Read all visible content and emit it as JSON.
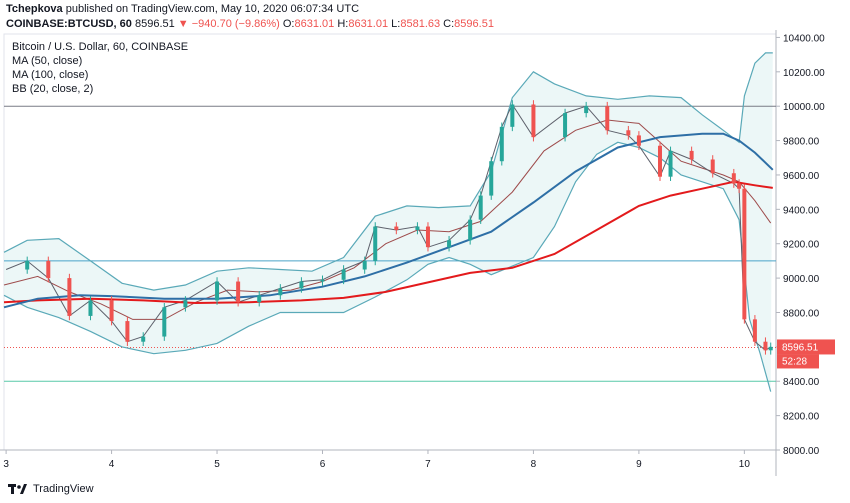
{
  "header": {
    "publisher": "Tchepkova",
    "published_text": "published on TradingView.com, May 10, 2020 06:07:34 UTC",
    "symbol": "COINBASE:BTCUSD, 60",
    "last": "8596.51",
    "change": "▼ −940.70 (−9.86%)",
    "o_label": "O:",
    "o": "8631.01",
    "h_label": "H:",
    "h": "8631.01",
    "l_label": "L:",
    "l": "8581.63",
    "c_label": "C:",
    "c": "8596.51"
  },
  "overlay": {
    "title": "Bitcoin / U.S. Dollar, 60, COINBASE",
    "ind1": "MA (50, close)",
    "ind2": "MA (100, close)",
    "ind3": "BB (20, close, 2)"
  },
  "footer": {
    "brand": "TradingView"
  },
  "chart_data": {
    "type": "line",
    "title": "Bitcoin / U.S. Dollar, 60, COINBASE",
    "ylim": [
      8000,
      10420
    ],
    "y_ticks": [
      "10400.00",
      "10200.00",
      "10000.00",
      "9800.00",
      "9600.00",
      "9400.00",
      "9200.00",
      "9000.00",
      "8800.00",
      "8600.00",
      "8400.00",
      "8200.00",
      "8000.00"
    ],
    "x_ticks": [
      {
        "label": "3",
        "x": 3
      },
      {
        "label": "4",
        "x": 4
      },
      {
        "label": "5",
        "x": 5
      },
      {
        "label": "6",
        "x": 6
      },
      {
        "label": "7",
        "x": 7
      },
      {
        "label": "8",
        "x": 8
      },
      {
        "label": "9",
        "x": 9
      },
      {
        "label": "10",
        "x": 10
      }
    ],
    "xlim": [
      2.98,
      10.3
    ],
    "last_price": 8596.51,
    "countdown": "52:28",
    "colors": {
      "up": "#26a69a",
      "down": "#ef5350",
      "ma50": "#2e6fa6",
      "ma100": "#e31a1c",
      "bb_mid": "#9e4b4b",
      "bb_band": "#5aa9b8",
      "bb_fill": "#e6f4f4",
      "hline_top": "#787b86",
      "hline_mid": "#4aa3c8",
      "hline_low": "#58c9a8",
      "price_line": "#ef5350"
    },
    "hlines": [
      {
        "name": "hline-10000",
        "y": 10000,
        "color": "#787b86"
      },
      {
        "name": "hline-9100",
        "y": 9100,
        "color": "#4aa3c8"
      },
      {
        "name": "hline-8400",
        "y": 8400,
        "color": "#58c9a8"
      }
    ],
    "series": [
      {
        "name": "Price (approx.)",
        "x": [
          3.0,
          3.2,
          3.4,
          3.6,
          3.8,
          4.0,
          4.15,
          4.3,
          4.5,
          4.7,
          5.0,
          5.2,
          5.4,
          5.6,
          5.8,
          6.0,
          6.2,
          6.4,
          6.5,
          6.7,
          6.9,
          7.0,
          7.2,
          7.4,
          7.5,
          7.6,
          7.7,
          7.8,
          8.0,
          8.3,
          8.5,
          8.7,
          8.9,
          9.0,
          9.2,
          9.3,
          9.5,
          9.7,
          9.9,
          9.95,
          10.0,
          10.1,
          10.2,
          10.25
        ],
        "values": [
          9050,
          9100,
          9000,
          8780,
          8870,
          8750,
          8630,
          8660,
          8830,
          8870,
          8980,
          8860,
          8900,
          8940,
          8980,
          8990,
          9050,
          9100,
          9300,
          9280,
          9300,
          9180,
          9220,
          9340,
          9480,
          9680,
          9880,
          10010,
          9820,
          9960,
          10000,
          9860,
          9830,
          9770,
          9590,
          9740,
          9690,
          9610,
          9550,
          9520,
          8760,
          8630,
          8580,
          8600
        ]
      },
      {
        "name": "MA (50, close)",
        "x": [
          2.98,
          3.3,
          3.7,
          4.0,
          4.5,
          5.0,
          5.5,
          6.0,
          6.4,
          6.8,
          7.2,
          7.6,
          8.0,
          8.4,
          8.8,
          9.2,
          9.6,
          9.8,
          9.95,
          10.1,
          10.27
        ],
        "values": [
          8830,
          8880,
          8900,
          8895,
          8880,
          8880,
          8900,
          8950,
          9010,
          9090,
          9180,
          9270,
          9440,
          9620,
          9760,
          9820,
          9840,
          9840,
          9800,
          9730,
          9630
        ]
      },
      {
        "name": "MA (100, close)",
        "x": [
          2.98,
          3.3,
          3.8,
          4.3,
          4.8,
          5.3,
          5.8,
          6.2,
          6.6,
          7.0,
          7.4,
          7.8,
          8.2,
          8.6,
          9.0,
          9.3,
          9.6,
          9.9,
          10.1,
          10.27
        ],
        "values": [
          8860,
          8870,
          8880,
          8870,
          8855,
          8860,
          8870,
          8885,
          8920,
          8975,
          9030,
          9060,
          9140,
          9280,
          9420,
          9480,
          9520,
          9560,
          9540,
          9525
        ]
      },
      {
        "name": "BB basis",
        "x": [
          2.98,
          3.3,
          3.6,
          3.9,
          4.2,
          4.5,
          4.8,
          5.1,
          5.4,
          5.7,
          6.0,
          6.3,
          6.6,
          6.9,
          7.2,
          7.5,
          7.8,
          8.1,
          8.4,
          8.7,
          9.0,
          9.2,
          9.4,
          9.6,
          9.8,
          9.95,
          10.1,
          10.25
        ],
        "values": [
          8960,
          9010,
          8920,
          8850,
          8760,
          8760,
          8860,
          8930,
          8920,
          8930,
          8980,
          9060,
          9200,
          9280,
          9270,
          9330,
          9500,
          9740,
          9860,
          9920,
          9900,
          9790,
          9680,
          9640,
          9600,
          9560,
          9450,
          9320
        ]
      },
      {
        "name": "BB upper",
        "x": [
          2.98,
          3.2,
          3.5,
          3.8,
          4.1,
          4.4,
          4.7,
          5.0,
          5.3,
          5.6,
          5.9,
          6.2,
          6.5,
          6.8,
          7.1,
          7.4,
          7.6,
          7.8,
          8.0,
          8.2,
          8.5,
          8.8,
          9.1,
          9.4,
          9.6,
          9.8,
          9.95,
          10.0,
          10.1,
          10.2,
          10.27
        ],
        "values": [
          9150,
          9220,
          9230,
          9100,
          8970,
          8930,
          8960,
          9040,
          9060,
          9050,
          9040,
          9120,
          9360,
          9420,
          9410,
          9420,
          9620,
          10050,
          10200,
          10130,
          10060,
          10040,
          10060,
          10050,
          9950,
          9860,
          9790,
          10060,
          10250,
          10310,
          10310
        ]
      },
      {
        "name": "BB lower",
        "x": [
          2.98,
          3.2,
          3.5,
          3.8,
          4.1,
          4.4,
          4.7,
          5.0,
          5.3,
          5.6,
          5.9,
          6.2,
          6.5,
          6.8,
          7.0,
          7.2,
          7.4,
          7.6,
          7.8,
          8.0,
          8.2,
          8.4,
          8.6,
          8.8,
          9.0,
          9.2,
          9.4,
          9.6,
          9.8,
          9.95,
          10.05,
          10.15,
          10.25
        ],
        "values": [
          8900,
          8830,
          8770,
          8690,
          8600,
          8560,
          8580,
          8620,
          8720,
          8800,
          8800,
          8800,
          8890,
          8990,
          9080,
          9120,
          9080,
          9020,
          9070,
          9120,
          9300,
          9560,
          9720,
          9790,
          9760,
          9700,
          9600,
          9560,
          9520,
          9340,
          8760,
          8560,
          8340
        ]
      }
    ]
  }
}
